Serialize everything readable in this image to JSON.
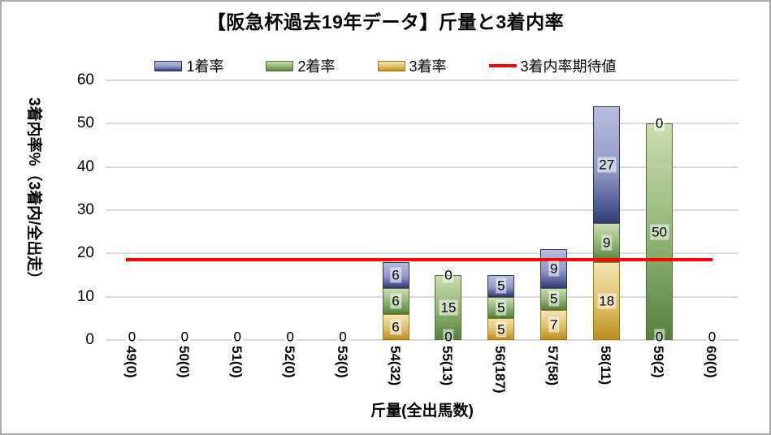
{
  "title": "【阪急杯過去19年データ】斤量と3着内率",
  "legend": {
    "items": [
      {
        "label": "1着率",
        "series": "rate1",
        "type": "swatch"
      },
      {
        "label": "2着率",
        "series": "rate2",
        "type": "swatch"
      },
      {
        "label": "3着率",
        "series": "rate3",
        "type": "swatch"
      },
      {
        "label": "3着内率期待値",
        "series": "expected",
        "type": "line"
      }
    ]
  },
  "chart_data": {
    "type": "bar",
    "stacked": true,
    "title": "【阪急杯過去19年データ】斤量と3着内率",
    "xlabel": "斤量(全出馬数)",
    "ylabel": "3着内率%（3着内/全出走）",
    "ylim": [
      0,
      60
    ],
    "yticks": [
      0,
      10,
      20,
      30,
      40,
      50,
      60
    ],
    "grid": true,
    "legend_position": "top",
    "categories": [
      "49(0)",
      "50(0)",
      "51(0)",
      "52(0)",
      "53(0)",
      "54(32)",
      "55(13)",
      "56(187)",
      "57(58)",
      "58(11)",
      "59(2)",
      "60(0)"
    ],
    "series": [
      {
        "key": "rate3",
        "name": "3着率",
        "values": [
          0,
          0,
          0,
          0,
          0,
          6,
          0,
          5,
          7,
          18,
          0,
          0
        ],
        "labels": [
          "0",
          "0",
          "0",
          "0",
          "0",
          "6",
          "0",
          "5",
          "7",
          "18",
          "0",
          "0"
        ]
      },
      {
        "key": "rate2",
        "name": "2着率",
        "values": [
          0,
          0,
          0,
          0,
          0,
          6,
          15,
          5,
          5,
          9,
          50,
          0
        ],
        "labels": [
          "0",
          "0",
          "0",
          "0",
          "0",
          "6",
          "15",
          "5",
          "5",
          "9",
          "50",
          "0"
        ]
      },
      {
        "key": "rate1",
        "name": "1着率",
        "values": [
          0,
          0,
          0,
          0,
          0,
          6,
          0,
          5,
          9,
          27,
          0,
          0
        ],
        "labels": [
          "0",
          "0",
          "0",
          "0",
          "0",
          "6",
          "0",
          "5",
          "9",
          "27",
          "0",
          "0"
        ]
      }
    ],
    "expected_line": {
      "name": "3着内率期待値",
      "value": 18.5
    }
  },
  "colors": {
    "rate1": {
      "top": "#b7bddc",
      "mid": "#9099c7",
      "bottom": "#353e7c",
      "border": "#2e3566"
    },
    "rate2": {
      "top": "#cbddb1",
      "mid": "#8fb273",
      "bottom": "#55813d",
      "border": "#4e7233"
    },
    "rate3": {
      "top": "#f2e4b0",
      "mid": "#dfc06a",
      "bottom": "#bb8f1e",
      "border": "#a37c15"
    },
    "expected": "#fe0000",
    "gridline": "#d9d9d9",
    "chart_border": "#ababab",
    "text": "#000000"
  }
}
